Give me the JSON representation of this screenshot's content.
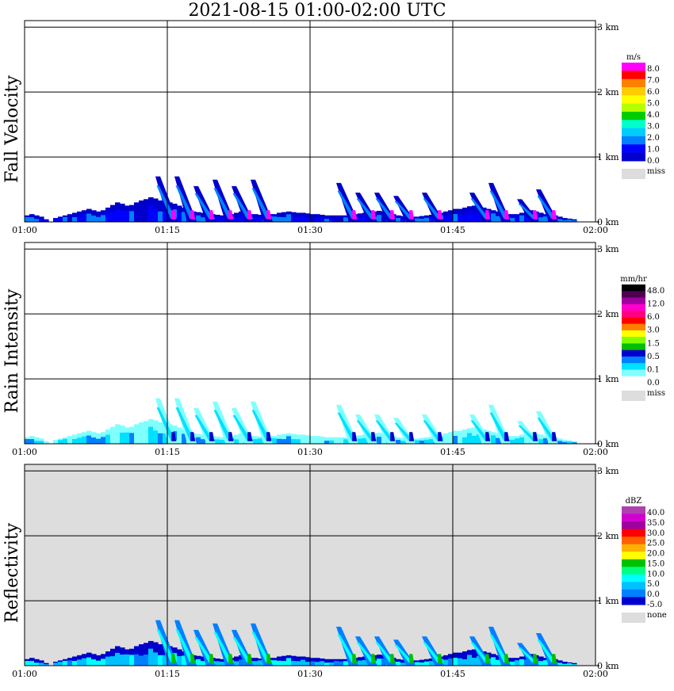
{
  "title": "2021-08-15   01:00-02:00 UTC",
  "x_ticks": [
    "01:00",
    "01:15",
    "01:30",
    "01:45",
    "02:00"
  ],
  "y_ticks": [
    "0 km",
    "1 km",
    "2 km",
    "3 km"
  ],
  "colors": {
    "frame": "#000000",
    "miss_fill": "#dddddd",
    "plot_bg_rain": "#ffffff",
    "plot_bg_reflectivity": "#dddddd"
  },
  "chart_data": [
    {
      "type": "heatmap",
      "ylabel": "Fall Velocity",
      "xlim": [
        "01:00",
        "02:00"
      ],
      "ylim_km": [
        0,
        3.1
      ],
      "grid": true,
      "legend_placement": "right",
      "colorbar": {
        "unit": "m/s",
        "labels": [
          "8.0",
          "7.0",
          "6.0",
          "5.0",
          "4.0",
          "3.0",
          "2.0",
          "1.0",
          "0.0"
        ],
        "colors": [
          "#ff00ff",
          "#ff0000",
          "#ff8000",
          "#ffcc00",
          "#ffff00",
          "#b4ff00",
          "#00cc00",
          "#00ffcc",
          "#00ccff",
          "#0080ff",
          "#0000ff",
          "#0000cc"
        ],
        "miss_label": "miss"
      },
      "echo_top_km": [
        0.1,
        0.12,
        0.1,
        0.08,
        0.04,
        0.0,
        0.06,
        0.08,
        0.1,
        0.12,
        0.14,
        0.16,
        0.18,
        0.2,
        0.18,
        0.16,
        0.18,
        0.22,
        0.26,
        0.3,
        0.28,
        0.25,
        0.26,
        0.3,
        0.33,
        0.35,
        0.38,
        0.36,
        0.33,
        0.3,
        0.3,
        0.28,
        0.25,
        0.22,
        0.18,
        0.16,
        0.15,
        0.14,
        0.13,
        0.12,
        0.11,
        0.1,
        0.1,
        0.12,
        0.14,
        0.16,
        0.14,
        0.12,
        0.12,
        0.11,
        0.11,
        0.12,
        0.12,
        0.14,
        0.15,
        0.16,
        0.15,
        0.14,
        0.14,
        0.13,
        0.12,
        0.12,
        0.11,
        0.1,
        0.1,
        0.1,
        0.1,
        0.1,
        0.11,
        0.12,
        0.13,
        0.14,
        0.15,
        0.16,
        0.17,
        0.16,
        0.14,
        0.12,
        0.1,
        0.09,
        0.08,
        0.08,
        0.08,
        0.09,
        0.1,
        0.11,
        0.12,
        0.14,
        0.16,
        0.18,
        0.2,
        0.2,
        0.22,
        0.24,
        0.25,
        0.24,
        0.22,
        0.2,
        0.18,
        0.16,
        0.14,
        0.12,
        0.12,
        0.12,
        0.14,
        0.16,
        0.18,
        0.16,
        0.14,
        0.12,
        0.1,
        0.1,
        0.08,
        0.06,
        0.05,
        0.04,
        0.0,
        0.0,
        0.0,
        0.0
      ],
      "plumes": [
        {
          "t": "01:14",
          "top_km": 0.7
        },
        {
          "t": "01:16",
          "top_km": 0.7
        },
        {
          "t": "01:18",
          "top_km": 0.55
        },
        {
          "t": "01:20",
          "top_km": 0.65
        },
        {
          "t": "01:22",
          "top_km": 0.55
        },
        {
          "t": "01:24",
          "top_km": 0.65
        },
        {
          "t": "01:33",
          "top_km": 0.6
        },
        {
          "t": "01:35",
          "top_km": 0.45
        },
        {
          "t": "01:37",
          "top_km": 0.45
        },
        {
          "t": "01:39",
          "top_km": 0.4
        },
        {
          "t": "01:42",
          "top_km": 0.45
        },
        {
          "t": "01:47",
          "top_km": 0.45
        },
        {
          "t": "01:49",
          "top_km": 0.6
        },
        {
          "t": "01:52",
          "top_km": 0.35
        },
        {
          "t": "01:54",
          "top_km": 0.5
        }
      ]
    },
    {
      "type": "heatmap",
      "ylabel": "Rain Intensity",
      "xlim": [
        "01:00",
        "02:00"
      ],
      "ylim_km": [
        0,
        3.1
      ],
      "grid": true,
      "legend_placement": "right",
      "colorbar": {
        "unit": "mm/hr",
        "labels": [
          "48.0",
          "12.0",
          "6.0",
          "3.0",
          "1.5",
          "0.5",
          "0.1",
          "0.0"
        ],
        "colors": [
          "#000000",
          "#500050",
          "#a000a0",
          "#ff00cc",
          "#ff0080",
          "#ff0000",
          "#ff8000",
          "#ffff00",
          "#80ff00",
          "#00c000",
          "#0000cc",
          "#0080ff",
          "#00e0ff",
          "#80ffff",
          "#ffffff"
        ],
        "miss_label": "miss"
      },
      "echo_top_km": [
        0.1,
        0.12,
        0.1,
        0.08,
        0.04,
        0.0,
        0.06,
        0.08,
        0.1,
        0.12,
        0.14,
        0.16,
        0.18,
        0.2,
        0.18,
        0.16,
        0.18,
        0.22,
        0.26,
        0.3,
        0.28,
        0.25,
        0.26,
        0.3,
        0.33,
        0.35,
        0.38,
        0.36,
        0.33,
        0.3,
        0.3,
        0.28,
        0.25,
        0.22,
        0.18,
        0.16,
        0.15,
        0.14,
        0.13,
        0.12,
        0.11,
        0.1,
        0.1,
        0.12,
        0.14,
        0.16,
        0.14,
        0.12,
        0.12,
        0.11,
        0.11,
        0.12,
        0.12,
        0.14,
        0.15,
        0.16,
        0.15,
        0.14,
        0.14,
        0.13,
        0.12,
        0.12,
        0.11,
        0.1,
        0.1,
        0.1,
        0.1,
        0.1,
        0.11,
        0.12,
        0.13,
        0.14,
        0.15,
        0.16,
        0.17,
        0.16,
        0.14,
        0.12,
        0.1,
        0.09,
        0.08,
        0.08,
        0.08,
        0.09,
        0.1,
        0.11,
        0.12,
        0.14,
        0.16,
        0.18,
        0.2,
        0.2,
        0.22,
        0.24,
        0.25,
        0.24,
        0.22,
        0.2,
        0.18,
        0.16,
        0.14,
        0.12,
        0.12,
        0.12,
        0.14,
        0.16,
        0.18,
        0.16,
        0.14,
        0.12,
        0.1,
        0.1,
        0.08,
        0.06,
        0.05,
        0.04,
        0.0,
        0.0,
        0.0,
        0.0
      ],
      "plumes": [
        {
          "t": "01:14",
          "top_km": 0.7
        },
        {
          "t": "01:16",
          "top_km": 0.7
        },
        {
          "t": "01:18",
          "top_km": 0.55
        },
        {
          "t": "01:20",
          "top_km": 0.65
        },
        {
          "t": "01:22",
          "top_km": 0.55
        },
        {
          "t": "01:24",
          "top_km": 0.65
        },
        {
          "t": "01:33",
          "top_km": 0.6
        },
        {
          "t": "01:35",
          "top_km": 0.45
        },
        {
          "t": "01:37",
          "top_km": 0.45
        },
        {
          "t": "01:39",
          "top_km": 0.4
        },
        {
          "t": "01:42",
          "top_km": 0.45
        },
        {
          "t": "01:47",
          "top_km": 0.45
        },
        {
          "t": "01:49",
          "top_km": 0.6
        },
        {
          "t": "01:52",
          "top_km": 0.35
        },
        {
          "t": "01:54",
          "top_km": 0.5
        }
      ]
    },
    {
      "type": "heatmap",
      "ylabel": "Reflectivity",
      "xlim": [
        "01:00",
        "02:00"
      ],
      "ylim_km": [
        0,
        3.1
      ],
      "grid": true,
      "legend_placement": "right",
      "colorbar": {
        "unit": "dBZ",
        "labels": [
          "40.0",
          "35.0",
          "30.0",
          "25.0",
          "20.0",
          "15.0",
          "10.0",
          "5.0",
          "0.0",
          "-5.0"
        ],
        "colors": [
          "#b040b0",
          "#d000d0",
          "#a000a0",
          "#ff0000",
          "#ff6000",
          "#ffb000",
          "#ffff00",
          "#00c000",
          "#00ff80",
          "#00ffff",
          "#00c0ff",
          "#0080ff",
          "#0000cc"
        ],
        "miss_label": "none"
      },
      "echo_top_km": [
        0.1,
        0.12,
        0.1,
        0.08,
        0.04,
        0.0,
        0.06,
        0.08,
        0.1,
        0.12,
        0.14,
        0.16,
        0.18,
        0.2,
        0.18,
        0.16,
        0.18,
        0.22,
        0.26,
        0.3,
        0.28,
        0.25,
        0.26,
        0.3,
        0.33,
        0.35,
        0.38,
        0.36,
        0.33,
        0.3,
        0.3,
        0.28,
        0.25,
        0.22,
        0.18,
        0.16,
        0.15,
        0.14,
        0.13,
        0.12,
        0.11,
        0.1,
        0.1,
        0.12,
        0.14,
        0.16,
        0.14,
        0.12,
        0.12,
        0.11,
        0.11,
        0.12,
        0.12,
        0.14,
        0.15,
        0.16,
        0.15,
        0.14,
        0.14,
        0.13,
        0.12,
        0.12,
        0.11,
        0.1,
        0.1,
        0.1,
        0.1,
        0.1,
        0.11,
        0.12,
        0.13,
        0.14,
        0.15,
        0.16,
        0.17,
        0.16,
        0.14,
        0.12,
        0.1,
        0.09,
        0.08,
        0.08,
        0.08,
        0.09,
        0.1,
        0.11,
        0.12,
        0.14,
        0.16,
        0.18,
        0.2,
        0.2,
        0.22,
        0.24,
        0.25,
        0.24,
        0.22,
        0.2,
        0.18,
        0.16,
        0.14,
        0.12,
        0.12,
        0.12,
        0.14,
        0.16,
        0.18,
        0.16,
        0.14,
        0.12,
        0.1,
        0.1,
        0.08,
        0.06,
        0.05,
        0.04,
        0.0,
        0.0,
        0.0,
        0.0
      ],
      "plumes": [
        {
          "t": "01:14",
          "top_km": 0.7
        },
        {
          "t": "01:16",
          "top_km": 0.7
        },
        {
          "t": "01:18",
          "top_km": 0.55
        },
        {
          "t": "01:20",
          "top_km": 0.65
        },
        {
          "t": "01:22",
          "top_km": 0.55
        },
        {
          "t": "01:24",
          "top_km": 0.65
        },
        {
          "t": "01:33",
          "top_km": 0.6
        },
        {
          "t": "01:35",
          "top_km": 0.45
        },
        {
          "t": "01:37",
          "top_km": 0.45
        },
        {
          "t": "01:39",
          "top_km": 0.4
        },
        {
          "t": "01:42",
          "top_km": 0.45
        },
        {
          "t": "01:47",
          "top_km": 0.45
        },
        {
          "t": "01:49",
          "top_km": 0.6
        },
        {
          "t": "01:52",
          "top_km": 0.35
        },
        {
          "t": "01:54",
          "top_km": 0.5
        }
      ]
    }
  ]
}
